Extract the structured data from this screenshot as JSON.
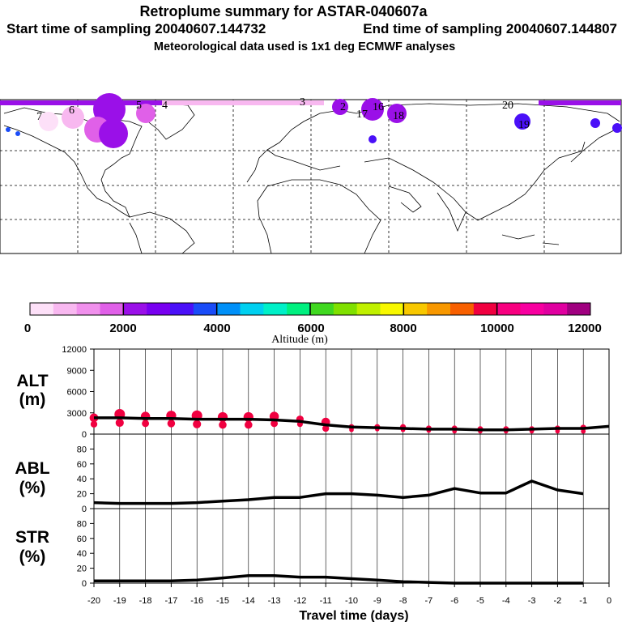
{
  "header": {
    "title": "Retroplume summary for ASTAR-040607a",
    "start_label": "Start time of sampling 20040607.144732",
    "end_label": "End time of sampling 20040607.144807",
    "met_label": "Meteorological data used is 1x1 deg ECMWF analyses"
  },
  "map_labels": [
    "6",
    "7",
    "5",
    "4",
    "3",
    "2",
    "19",
    "20",
    "17",
    "16",
    "18"
  ],
  "legend": {
    "title": "Altitude (m)",
    "tick_labels": [
      "0",
      "2000",
      "4000",
      "6000",
      "8000",
      "10000",
      "12000"
    ],
    "colors": [
      "#fde0f8",
      "#f8b8f0",
      "#f090ec",
      "#e060e8",
      "#9a10e8",
      "#7800f0",
      "#4a10f8",
      "#1a4cf8",
      "#0090f8",
      "#00d0f0",
      "#00f0c8",
      "#00f080",
      "#40d820",
      "#80e000",
      "#c0f000",
      "#f8f800",
      "#f8c800",
      "#f89800",
      "#f86000",
      "#f00040",
      "#f80080",
      "#f800a0",
      "#e000a0",
      "#a00080"
    ]
  },
  "chart_data": [
    {
      "type": "line",
      "name": "ALT",
      "panel_label": "ALT",
      "panel_unit": "(m)",
      "x": [
        -20,
        -19,
        -18,
        -17,
        -16,
        -15,
        -14,
        -13,
        -12,
        -11,
        -10,
        -9,
        -8,
        -7,
        -6,
        -5,
        -4,
        -3,
        -2,
        -1,
        0
      ],
      "values": [
        2300,
        2300,
        2200,
        2200,
        2100,
        2100,
        2100,
        2000,
        1800,
        1300,
        1000,
        900,
        800,
        700,
        700,
        600,
        600,
        700,
        800,
        800,
        1100
      ],
      "ylim": [
        0,
        12000
      ],
      "y_ticks": [
        "0",
        "3000",
        "6000",
        "9000",
        "12000"
      ],
      "marker_x": [
        -20,
        -19,
        -18,
        -17,
        -16,
        -15,
        -14,
        -13,
        -12,
        -11,
        -10,
        -9,
        -8,
        -7,
        -6,
        -5,
        -4,
        -3,
        -2,
        -1
      ],
      "marker_upper": [
        2300,
        2800,
        2500,
        2600,
        2600,
        2400,
        2400,
        2500,
        2100,
        1700,
        1000,
        1000,
        1000,
        800,
        800,
        700,
        700,
        700,
        800,
        900
      ],
      "marker_lower": [
        1400,
        1600,
        1500,
        1500,
        1400,
        1300,
        1300,
        1500,
        1400,
        800,
        600,
        700,
        600,
        500,
        400,
        400,
        400,
        400,
        400,
        400
      ],
      "xlabel": "Travel time (days)",
      "x_tick_labels": [
        "-20",
        "-19",
        "-18",
        "-17",
        "-16",
        "-15",
        "-14",
        "-13",
        "-12",
        "-11",
        "-10",
        "-9",
        "-8",
        "-7",
        "-6",
        "-5",
        "-4",
        "-3",
        "-2",
        "-1",
        "0"
      ]
    },
    {
      "type": "line",
      "name": "ABL",
      "panel_label": "ABL",
      "panel_unit": "(%)",
      "x": [
        -20,
        -19,
        -18,
        -17,
        -16,
        -15,
        -14,
        -13,
        -12,
        -11,
        -10,
        -9,
        -8,
        -7,
        -6,
        -5,
        -4,
        -3,
        -2,
        -1
      ],
      "values": [
        8,
        7,
        7,
        7,
        8,
        10,
        12,
        15,
        15,
        20,
        20,
        18,
        15,
        18,
        27,
        21,
        21,
        37,
        25,
        20
      ],
      "ylim": [
        0,
        100
      ],
      "y_ticks": [
        "0",
        "20",
        "40",
        "60",
        "80"
      ]
    },
    {
      "type": "line",
      "name": "STR",
      "panel_label": "STR",
      "panel_unit": "(%)",
      "x": [
        -20,
        -19,
        -18,
        -17,
        -16,
        -15,
        -14,
        -13,
        -12,
        -11,
        -10,
        -9,
        -8,
        -7,
        -6,
        -5,
        -4,
        -3,
        -2,
        -1
      ],
      "values": [
        3,
        3,
        3,
        3,
        4,
        7,
        10,
        10,
        8,
        8,
        6,
        4,
        2,
        1,
        0,
        0,
        0,
        0,
        0,
        0
      ],
      "ylim": [
        0,
        100
      ],
      "y_ticks": [
        "0",
        "20",
        "40",
        "60",
        "80"
      ]
    }
  ]
}
